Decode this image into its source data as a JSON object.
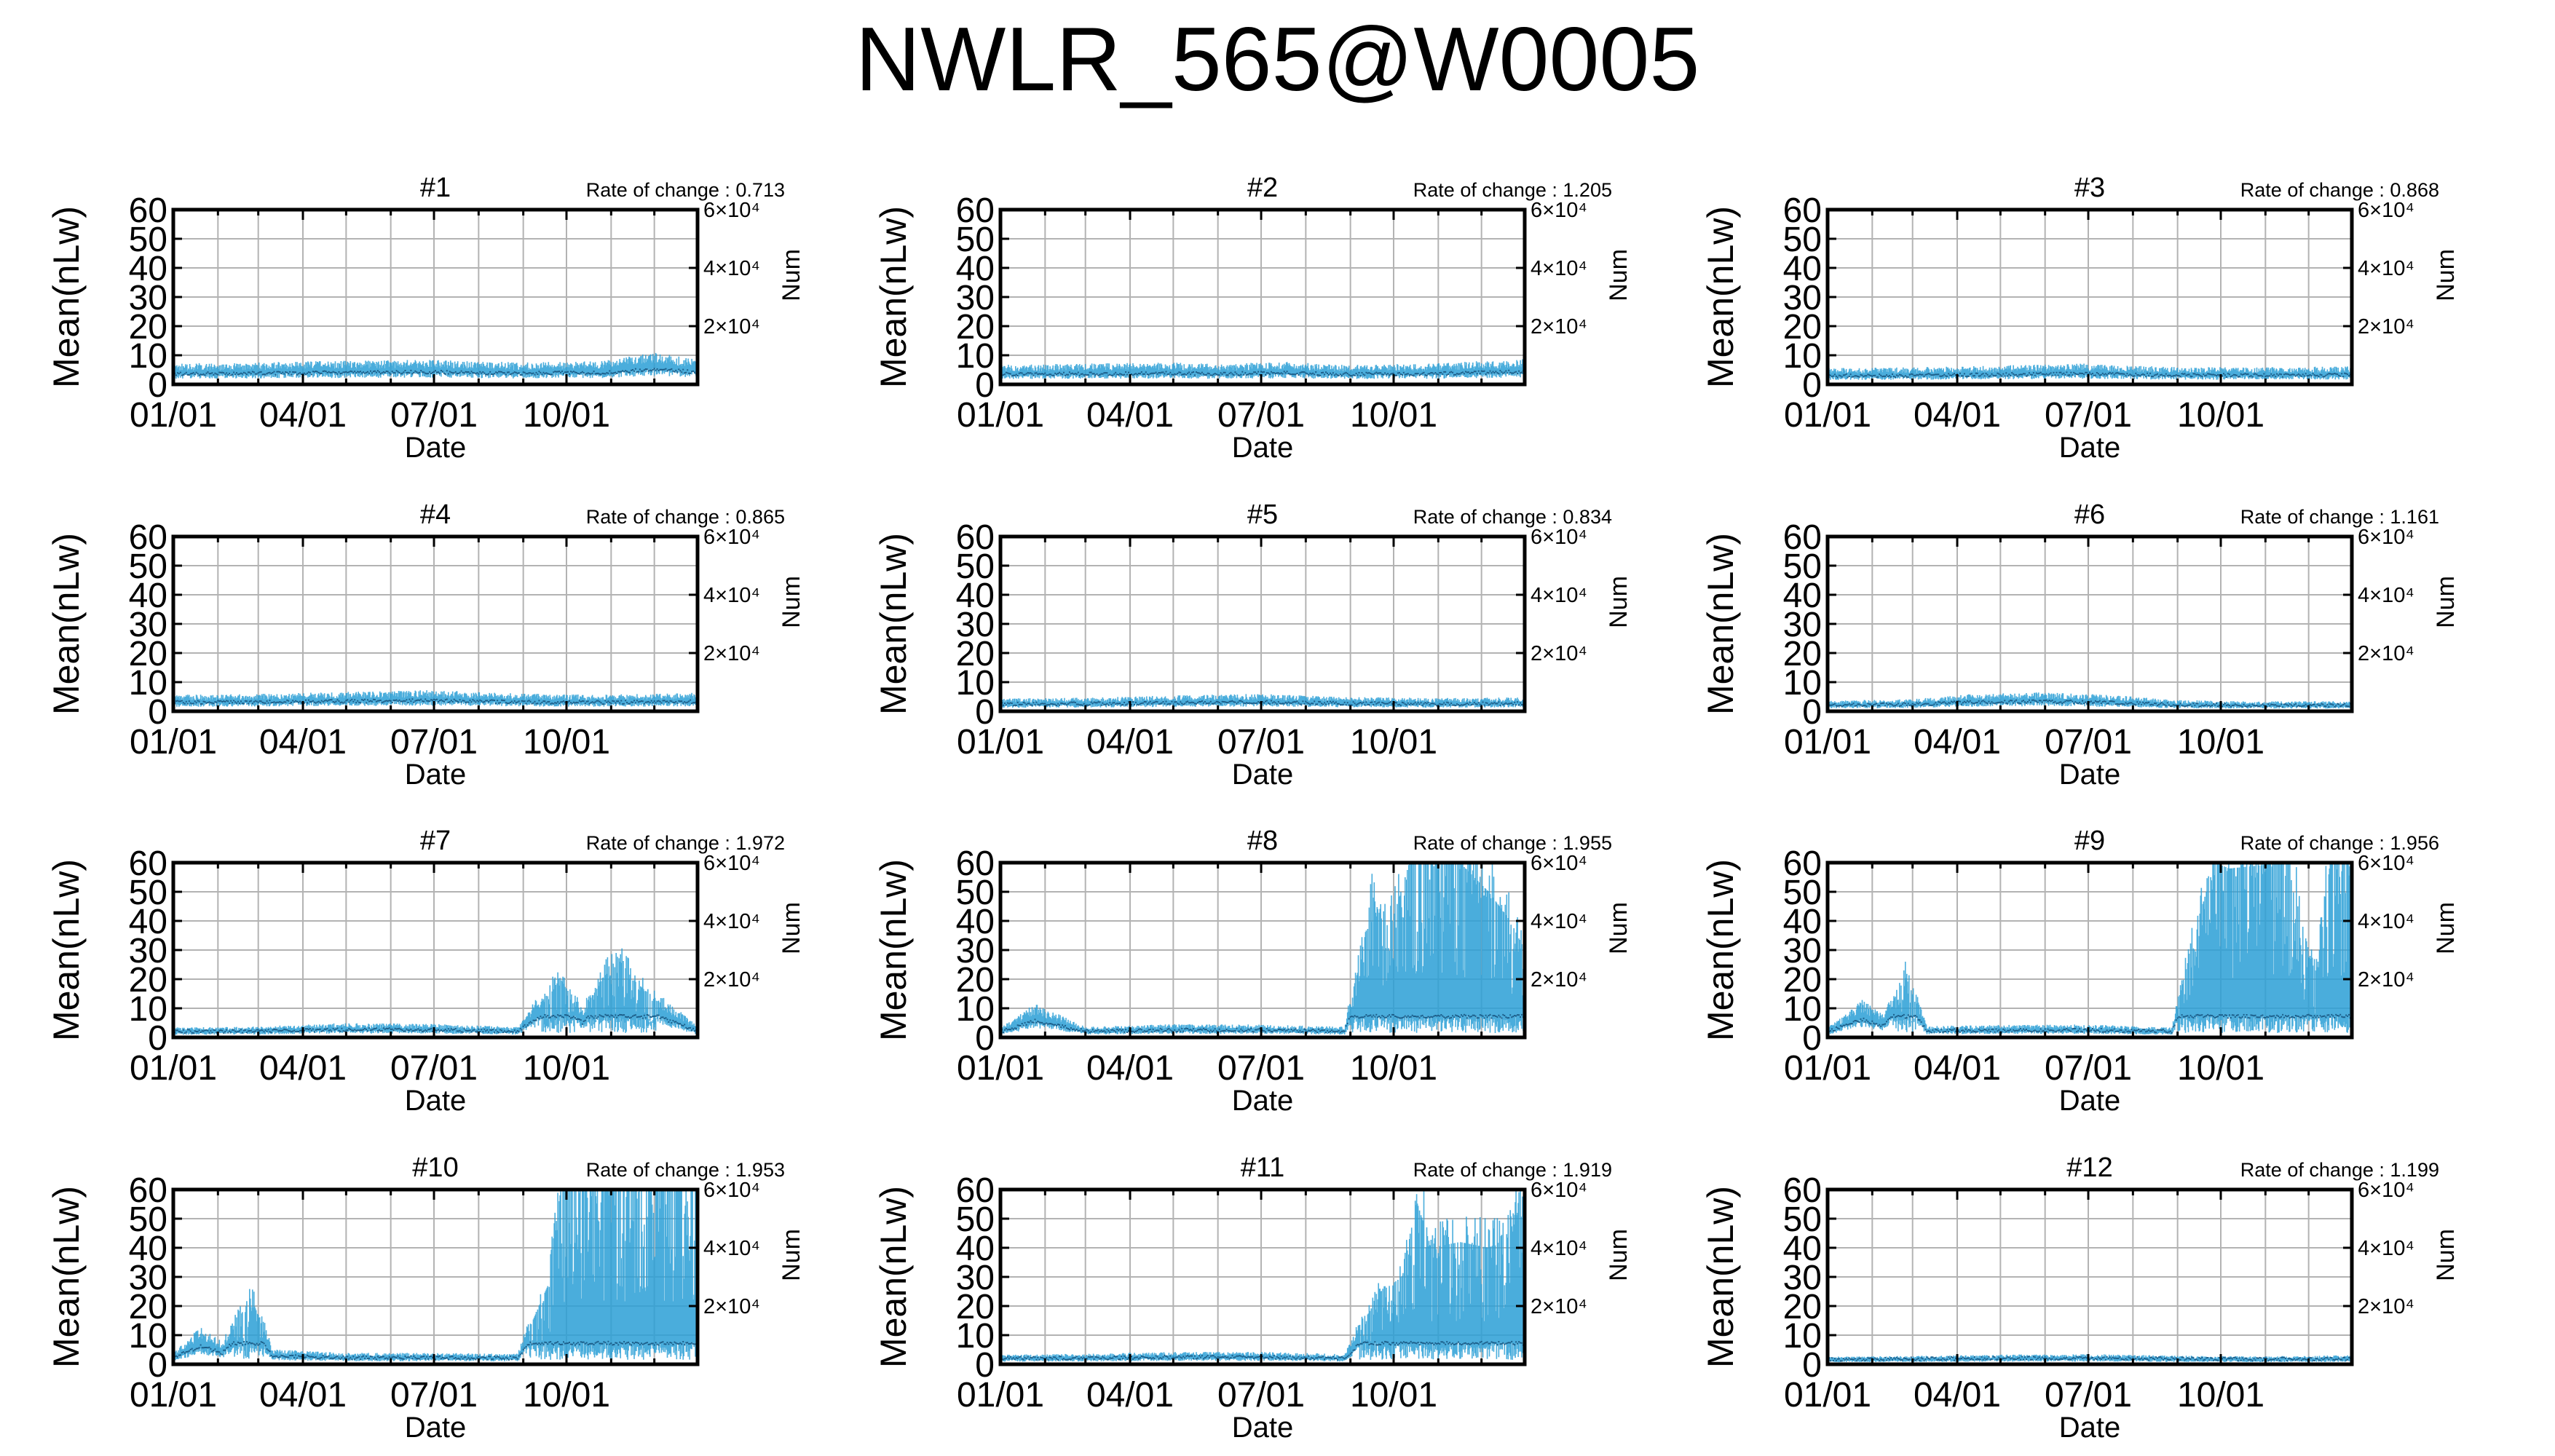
{
  "figure": {
    "title": "NWLR_565@W0005"
  },
  "chart_data": [
    {
      "type": "line",
      "title": "#1",
      "annotation": "Rate of change : 0.713",
      "xlabel": "Date",
      "ylabel": "Mean(nLw)",
      "y2label": "Num",
      "xticks": [
        "01/01",
        "04/01",
        "07/01",
        "10/01"
      ],
      "yticks": [
        "0",
        "10",
        "20",
        "30",
        "40",
        "50",
        "60"
      ],
      "ylim": [
        0,
        60
      ],
      "y2ticks": [
        "2×10⁴",
        "4×10⁴",
        "6×10⁴"
      ],
      "y2lim": [
        0,
        60000
      ],
      "xlim_days": [
        1,
        365
      ],
      "grid": true,
      "legend": "none",
      "series": [
        {
          "values": [
            [
              1,
              5.5
            ],
            [
              60,
              5.8
            ],
            [
              120,
              6.3
            ],
            [
              180,
              6.6
            ],
            [
              240,
              5.8
            ],
            [
              300,
              6.2
            ],
            [
              335,
              8.5
            ],
            [
              365,
              6.5
            ]
          ]
        }
      ]
    },
    {
      "type": "line",
      "title": "#2",
      "annotation": "Rate of change : 1.205",
      "xlabel": "Date",
      "ylabel": "Mean(nLw)",
      "y2label": "Num",
      "xticks": [
        "01/01",
        "04/01",
        "07/01",
        "10/01"
      ],
      "yticks": [
        "0",
        "10",
        "20",
        "30",
        "40",
        "50",
        "60"
      ],
      "ylim": [
        0,
        60
      ],
      "y2ticks": [
        "2×10⁴",
        "4×10⁴",
        "6×10⁴"
      ],
      "y2lim": [
        0,
        60000
      ],
      "xlim_days": [
        1,
        365
      ],
      "grid": true,
      "legend": "none",
      "series": [
        {
          "values": [
            [
              1,
              5.2
            ],
            [
              60,
              5.5
            ],
            [
              120,
              5.8
            ],
            [
              150,
              5.4
            ],
            [
              200,
              6
            ],
            [
              240,
              5.2
            ],
            [
              300,
              5.5
            ],
            [
              365,
              6.8
            ]
          ]
        }
      ]
    },
    {
      "type": "line",
      "title": "#3",
      "annotation": "Rate of change : 0.868",
      "xlabel": "Date",
      "ylabel": "Mean(nLw)",
      "y2label": "Num",
      "xticks": [
        "01/01",
        "04/01",
        "07/01",
        "10/01"
      ],
      "yticks": [
        "0",
        "10",
        "20",
        "30",
        "40",
        "50",
        "60"
      ],
      "ylim": [
        0,
        60
      ],
      "y2ticks": [
        "2×10⁴",
        "4×10⁴",
        "6×10⁴"
      ],
      "y2lim": [
        0,
        60000
      ],
      "xlim_days": [
        1,
        365
      ],
      "grid": true,
      "legend": "none",
      "series": [
        {
          "values": [
            [
              1,
              4.3
            ],
            [
              60,
              4.5
            ],
            [
              120,
              5
            ],
            [
              180,
              5.5
            ],
            [
              240,
              4.6
            ],
            [
              300,
              4.5
            ],
            [
              365,
              4.8
            ]
          ]
        }
      ]
    },
    {
      "type": "line",
      "title": "#4",
      "annotation": "Rate of change : 0.865",
      "xlabel": "Date",
      "ylabel": "Mean(nLw)",
      "y2label": "Num",
      "xticks": [
        "01/01",
        "04/01",
        "07/01",
        "10/01"
      ],
      "yticks": [
        "0",
        "10",
        "20",
        "30",
        "40",
        "50",
        "60"
      ],
      "ylim": [
        0,
        60
      ],
      "y2ticks": [
        "2×10⁴",
        "4×10⁴",
        "6×10⁴"
      ],
      "y2lim": [
        0,
        60000
      ],
      "xlim_days": [
        1,
        365
      ],
      "grid": true,
      "legend": "none",
      "series": [
        {
          "values": [
            [
              1,
              4.4
            ],
            [
              60,
              4.6
            ],
            [
              120,
              5.1
            ],
            [
              180,
              5.6
            ],
            [
              240,
              4.7
            ],
            [
              300,
              4.4
            ],
            [
              365,
              4.9
            ]
          ]
        }
      ]
    },
    {
      "type": "line",
      "title": "#5",
      "annotation": "Rate of change : 0.834",
      "xlabel": "Date",
      "ylabel": "Mean(nLw)",
      "y2label": "Num",
      "xticks": [
        "01/01",
        "04/01",
        "07/01",
        "10/01"
      ],
      "yticks": [
        "0",
        "10",
        "20",
        "30",
        "40",
        "50",
        "60"
      ],
      "ylim": [
        0,
        60
      ],
      "y2ticks": [
        "2×10⁴",
        "4×10⁴",
        "6×10⁴"
      ],
      "y2lim": [
        0,
        60000
      ],
      "xlim_days": [
        1,
        365
      ],
      "grid": true,
      "legend": "none",
      "series": [
        {
          "values": [
            [
              1,
              3.4
            ],
            [
              60,
              3.6
            ],
            [
              120,
              4.2
            ],
            [
              180,
              4.6
            ],
            [
              240,
              3.8
            ],
            [
              300,
              3.5
            ],
            [
              365,
              3.7
            ]
          ]
        }
      ]
    },
    {
      "type": "line",
      "title": "#6",
      "annotation": "Rate of change : 1.161",
      "xlabel": "Date",
      "ylabel": "Mean(nLw)",
      "y2label": "Num",
      "xticks": [
        "01/01",
        "04/01",
        "07/01",
        "10/01"
      ],
      "yticks": [
        "0",
        "10",
        "20",
        "30",
        "40",
        "50",
        "60"
      ],
      "ylim": [
        0,
        60
      ],
      "y2ticks": [
        "2×10⁴",
        "4×10⁴",
        "6×10⁴"
      ],
      "y2lim": [
        0,
        60000
      ],
      "xlim_days": [
        1,
        365
      ],
      "grid": true,
      "legend": "none",
      "series": [
        {
          "values": [
            [
              1,
              2.8
            ],
            [
              60,
              3.2
            ],
            [
              100,
              4.5
            ],
            [
              150,
              5
            ],
            [
              200,
              4.3
            ],
            [
              240,
              3
            ],
            [
              300,
              2.6
            ],
            [
              365,
              2.7
            ]
          ]
        }
      ]
    },
    {
      "type": "line",
      "title": "#7",
      "annotation": "Rate of change : 1.972",
      "xlabel": "Date",
      "ylabel": "Mean(nLw)",
      "y2label": "Num",
      "xticks": [
        "01/01",
        "04/01",
        "07/01",
        "10/01"
      ],
      "yticks": [
        "0",
        "10",
        "20",
        "30",
        "40",
        "50",
        "60"
      ],
      "ylim": [
        0,
        60
      ],
      "y2ticks": [
        "2×10⁴",
        "4×10⁴",
        "6×10⁴"
      ],
      "y2lim": [
        0,
        60000
      ],
      "xlim_days": [
        1,
        365
      ],
      "grid": true,
      "legend": "none",
      "series": [
        {
          "values": [
            [
              1,
              2.6
            ],
            [
              60,
              2.9
            ],
            [
              120,
              3.8
            ],
            [
              180,
              3.6
            ],
            [
              240,
              2.8
            ],
            [
              270,
              20
            ],
            [
              285,
              8
            ],
            [
              300,
              21
            ],
            [
              312,
              26
            ],
            [
              320,
              20
            ],
            [
              340,
              11
            ],
            [
              365,
              3
            ]
          ]
        }
      ]
    },
    {
      "type": "line",
      "title": "#8",
      "annotation": "Rate of change : 1.955",
      "xlabel": "Date",
      "ylabel": "Mean(nLw)",
      "y2label": "Num",
      "xticks": [
        "01/01",
        "04/01",
        "07/01",
        "10/01"
      ],
      "yticks": [
        "0",
        "10",
        "20",
        "30",
        "40",
        "50",
        "60"
      ],
      "ylim": [
        0,
        60
      ],
      "y2ticks": [
        "2×10⁴",
        "4×10⁴",
        "6×10⁴"
      ],
      "y2lim": [
        0,
        60000
      ],
      "xlim_days": [
        1,
        365
      ],
      "grid": true,
      "legend": "none",
      "series": [
        {
          "values": [
            [
              1,
              2.5
            ],
            [
              25,
              9
            ],
            [
              60,
              2.8
            ],
            [
              120,
              3.5
            ],
            [
              180,
              3.4
            ],
            [
              240,
              2.8
            ],
            [
              260,
              48
            ],
            [
              270,
              35
            ],
            [
              285,
              60
            ],
            [
              300,
              60
            ],
            [
              320,
              60
            ],
            [
              340,
              50
            ],
            [
              355,
              40
            ],
            [
              365,
              30
            ]
          ]
        }
      ]
    },
    {
      "type": "line",
      "title": "#9",
      "annotation": "Rate of change : 1.956",
      "xlabel": "Date",
      "ylabel": "Mean(nLw)",
      "y2label": "Num",
      "xticks": [
        "01/01",
        "04/01",
        "07/01",
        "10/01"
      ],
      "yticks": [
        "0",
        "10",
        "20",
        "30",
        "40",
        "50",
        "60"
      ],
      "ylim": [
        0,
        60
      ],
      "y2ticks": [
        "2×10⁴",
        "4×10⁴",
        "6×10⁴"
      ],
      "y2lim": [
        0,
        60000
      ],
      "xlim_days": [
        1,
        365
      ],
      "grid": true,
      "legend": "none",
      "series": [
        {
          "values": [
            [
              1,
              2.5
            ],
            [
              25,
              10
            ],
            [
              40,
              6
            ],
            [
              55,
              21
            ],
            [
              70,
              3
            ],
            [
              120,
              3.3
            ],
            [
              180,
              3.4
            ],
            [
              240,
              2.7
            ],
            [
              258,
              40
            ],
            [
              270,
              60
            ],
            [
              280,
              58
            ],
            [
              320,
              60
            ],
            [
              340,
              20
            ],
            [
              350,
              60
            ],
            [
              365,
              60
            ]
          ]
        }
      ]
    },
    {
      "type": "line",
      "title": "#10",
      "annotation": "Rate of change : 1.953",
      "xlabel": "Date",
      "ylabel": "Mean(nLw)",
      "y2label": "Num",
      "xticks": [
        "01/01",
        "04/01",
        "07/01",
        "10/01"
      ],
      "yticks": [
        "0",
        "10",
        "20",
        "30",
        "40",
        "50",
        "60"
      ],
      "ylim": [
        0,
        60
      ],
      "y2ticks": [
        "2×10⁴",
        "4×10⁴",
        "6×10⁴"
      ],
      "y2lim": [
        0,
        60000
      ],
      "xlim_days": [
        1,
        365
      ],
      "grid": true,
      "legend": "none",
      "series": [
        {
          "values": [
            [
              1,
              3
            ],
            [
              20,
              10
            ],
            [
              35,
              6
            ],
            [
              55,
              23
            ],
            [
              70,
              4
            ],
            [
              120,
              3
            ],
            [
              180,
              3
            ],
            [
              240,
              2.8
            ],
            [
              262,
              28
            ],
            [
              270,
              60
            ],
            [
              290,
              60
            ],
            [
              320,
              60
            ],
            [
              345,
              60
            ],
            [
              365,
              60
            ]
          ]
        }
      ]
    },
    {
      "type": "line",
      "title": "#11",
      "annotation": "Rate of change : 1.919",
      "xlabel": "Date",
      "ylabel": "Mean(nLw)",
      "y2label": "Num",
      "xticks": [
        "01/01",
        "04/01",
        "07/01",
        "10/01"
      ],
      "yticks": [
        "0",
        "10",
        "20",
        "30",
        "40",
        "50",
        "60"
      ],
      "ylim": [
        0,
        60
      ],
      "y2ticks": [
        "2×10⁴",
        "4×10⁴",
        "6×10⁴"
      ],
      "y2lim": [
        0,
        60000
      ],
      "xlim_days": [
        1,
        365
      ],
      "grid": true,
      "legend": "none",
      "series": [
        {
          "values": [
            [
              1,
              2.5
            ],
            [
              60,
              2.8
            ],
            [
              120,
              3.3
            ],
            [
              180,
              3.3
            ],
            [
              240,
              2.7
            ],
            [
              265,
              25
            ],
            [
              280,
              30
            ],
            [
              290,
              56
            ],
            [
              300,
              40
            ],
            [
              320,
              42
            ],
            [
              340,
              40
            ],
            [
              355,
              44
            ],
            [
              365,
              60
            ]
          ]
        }
      ]
    },
    {
      "type": "line",
      "title": "#12",
      "annotation": "Rate of change : 1.199",
      "xlabel": "Date",
      "ylabel": "Mean(nLw)",
      "y2label": "Num",
      "xticks": [
        "01/01",
        "04/01",
        "07/01",
        "10/01"
      ],
      "yticks": [
        "0",
        "10",
        "20",
        "30",
        "40",
        "50",
        "60"
      ],
      "ylim": [
        0,
        60
      ],
      "y2ticks": [
        "2×10⁴",
        "4×10⁴",
        "6×10⁴"
      ],
      "y2lim": [
        0,
        60000
      ],
      "xlim_days": [
        1,
        365
      ],
      "grid": true,
      "legend": "none",
      "series": [
        {
          "values": [
            [
              1,
              2
            ],
            [
              60,
              2.2
            ],
            [
              120,
              2.6
            ],
            [
              180,
              2.7
            ],
            [
              240,
              2.3
            ],
            [
              300,
              2.1
            ],
            [
              365,
              2.4
            ]
          ]
        }
      ]
    }
  ],
  "colors": {
    "series": "#2a9fd6",
    "grid": "#b3b3b3",
    "axes": "#000000"
  }
}
